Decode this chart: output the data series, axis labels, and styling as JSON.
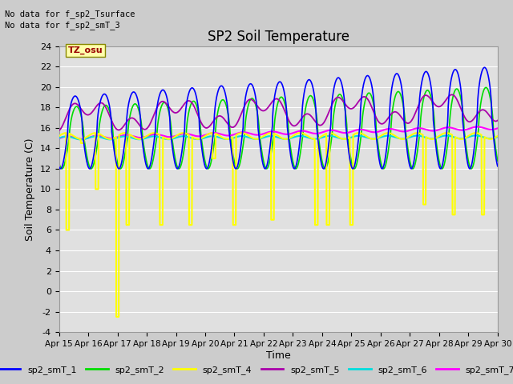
{
  "title": "SP2 Soil Temperature",
  "ylabel": "Soil Temperature (C)",
  "xlabel": "Time",
  "no_data_text": [
    "No data for f_sp2_Tsurface",
    "No data for f_sp2_smT_3"
  ],
  "tz_label": "TZ_osu",
  "ylim": [
    -4,
    24
  ],
  "yticks": [
    -4,
    -2,
    0,
    2,
    4,
    6,
    8,
    10,
    12,
    14,
    16,
    18,
    20,
    22,
    24
  ],
  "xtick_labels": [
    "Apr 15",
    "Apr 16",
    "Apr 17",
    "Apr 18",
    "Apr 19",
    "Apr 20",
    "Apr 21",
    "Apr 22",
    "Apr 23",
    "Apr 24",
    "Apr 25",
    "Apr 26",
    "Apr 27",
    "Apr 28",
    "Apr 29",
    "Apr 30"
  ],
  "bg_color": "#cccccc",
  "plot_bg_color": "#e0e0e0",
  "grid_color": "#ffffff",
  "colors": {
    "sp2_smT_1": "#0000ff",
    "sp2_smT_2": "#00dd00",
    "sp2_smT_4": "#ffff00",
    "sp2_smT_5": "#aa00aa",
    "sp2_smT_6": "#00dddd",
    "sp2_smT_7": "#ff00ff"
  }
}
